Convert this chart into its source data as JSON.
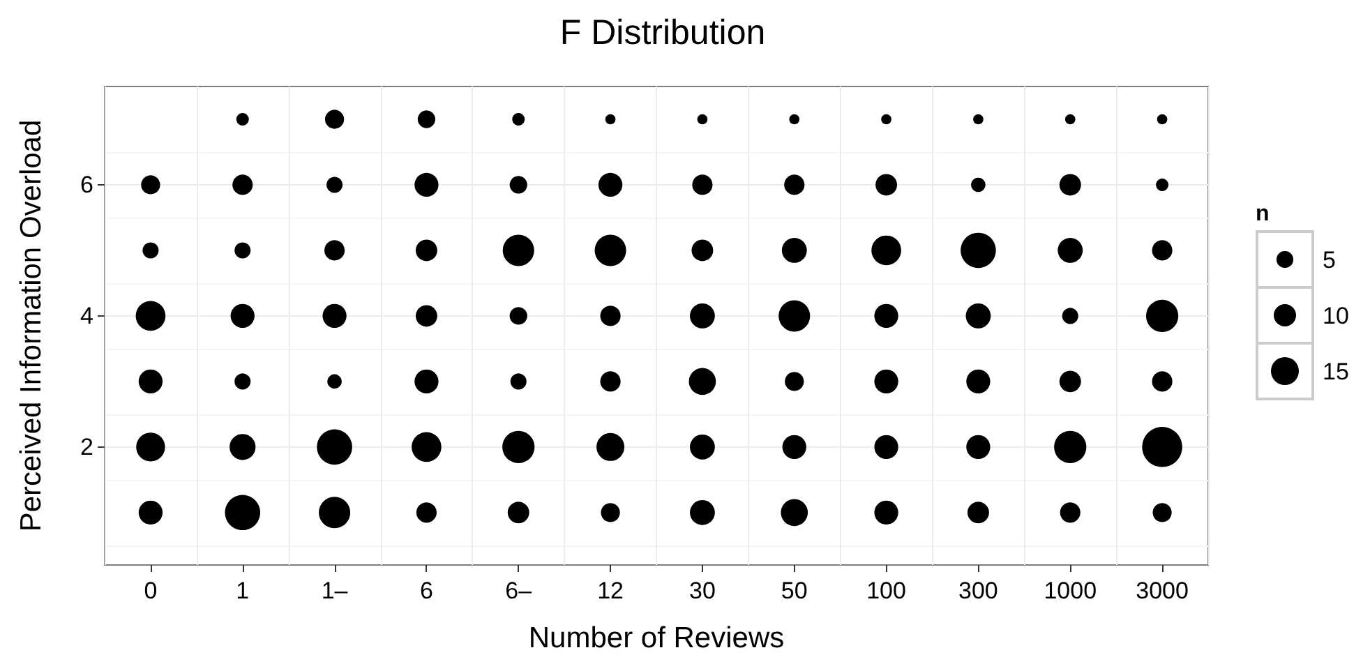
{
  "chart_data": {
    "type": "bubble",
    "title": "F Distribution",
    "xlabel": "Number of Reviews",
    "ylabel": "Perceived Information Overload",
    "legend_title": "n",
    "categories": [
      "0",
      "1",
      "1–",
      "6",
      "6–",
      "12",
      "30",
      "50",
      "100",
      "300",
      "1000",
      "3000"
    ],
    "ylim": [
      0.2,
      7.5
    ],
    "yticks": [
      2,
      4,
      6
    ],
    "grid": true,
    "size_legend": [
      5,
      10,
      15
    ],
    "series": [
      {
        "color": "#000000",
        "values": [
          null,
          7,
          7,
          7,
          7,
          7,
          7,
          7,
          7,
          7,
          7,
          7
        ],
        "sizes": [
          null,
          3,
          7,
          6,
          3,
          2,
          2,
          2,
          2,
          2,
          2,
          2
        ]
      },
      {
        "color": "#000000",
        "values": [
          6,
          6,
          6,
          6,
          6,
          6,
          6,
          6,
          6,
          6,
          6,
          6
        ],
        "sizes": [
          7,
          8,
          5,
          11,
          6,
          11,
          8,
          8,
          9,
          4,
          9,
          3
        ]
      },
      {
        "color": "#000000",
        "values": [
          5,
          5,
          5,
          5,
          5,
          5,
          5,
          5,
          5,
          5,
          5,
          5
        ],
        "sizes": [
          5,
          5,
          8,
          9,
          19,
          19,
          9,
          12,
          17,
          24,
          12,
          8
        ]
      },
      {
        "color": "#000000",
        "values": [
          4,
          4,
          4,
          4,
          4,
          4,
          4,
          4,
          4,
          4,
          4,
          4
        ],
        "sizes": [
          17,
          11,
          11,
          9,
          6,
          8,
          12,
          19,
          11,
          12,
          5,
          20
        ]
      },
      {
        "color": "#000000",
        "values": [
          3,
          3,
          3,
          3,
          3,
          3,
          3,
          3,
          3,
          3,
          3,
          3
        ],
        "sizes": [
          11,
          5,
          4,
          11,
          5,
          8,
          14,
          7,
          11,
          11,
          9,
          8
        ]
      },
      {
        "color": "#000000",
        "values": [
          2,
          2,
          2,
          2,
          2,
          2,
          2,
          2,
          2,
          2,
          2,
          2
        ],
        "sizes": [
          16,
          13,
          24,
          17,
          20,
          15,
          12,
          11,
          11,
          11,
          20,
          31
        ]
      },
      {
        "color": "#000000",
        "values": [
          1,
          1,
          1,
          1,
          1,
          1,
          1,
          1,
          1,
          1,
          1,
          1
        ],
        "sizes": [
          11,
          24,
          19,
          8,
          9,
          7,
          12,
          14,
          11,
          9,
          8,
          7
        ]
      }
    ]
  }
}
